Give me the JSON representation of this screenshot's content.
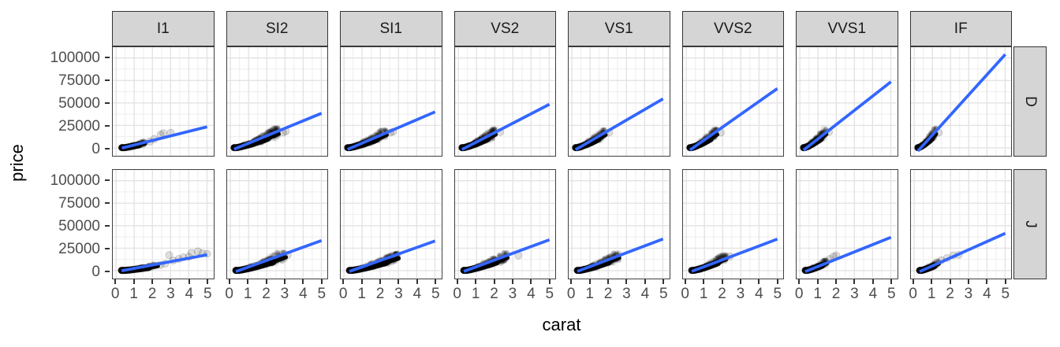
{
  "chart_data": {
    "type": "scatter",
    "title": "",
    "xlabel": "carat",
    "ylabel": "price",
    "facet_col_var": "clarity",
    "facet_col_levels": [
      "I1",
      "SI2",
      "SI1",
      "VS2",
      "VS1",
      "VVS2",
      "VVS1",
      "IF"
    ],
    "facet_row_var": "color",
    "facet_row_levels": [
      "D",
      "J"
    ],
    "x_domain": [
      -0.18,
      5.35
    ],
    "y_domain": [
      -8800,
      112000
    ],
    "x_major_ticks": [
      0,
      1,
      2,
      3,
      4,
      5
    ],
    "x_minor_gridlines": [
      0.5,
      1.5,
      2.5,
      3.5,
      4.5
    ],
    "y_major_ticks": [
      0,
      25000,
      50000,
      75000,
      100000
    ],
    "y_minor_gridlines": [
      12500,
      37500,
      62500,
      87500
    ],
    "grid": true,
    "legend_position": "none",
    "colors": {
      "point": "#000000",
      "point_alpha": 0.13,
      "smooth_line": "#3366FF",
      "strip_fill": "#d5d5d5",
      "strip_border": "#333333",
      "panel_border": "#404040",
      "grid_major": "#e3e3e3",
      "grid_minor": "#f0f0f0",
      "tick_text": "#4d4d4d"
    },
    "smooth_note": "linear fit per facet; segment endpoints [carat0, price0, carat1, price1] estimated from pixels",
    "cluster_note": "dense point cloud per facet approximated by carat range, top price at cluster end, and point count",
    "panels": [
      {
        "row": "D",
        "col": "I1",
        "smooth": [
          0.32,
          -300,
          5.01,
          23500
        ],
        "cluster": {
          "carat_min": 0.32,
          "carat_max": 1.6,
          "price_top": 6500,
          "n": 210
        },
        "outliers": [
          [
            1.85,
            7000
          ],
          [
            2.1,
            9800
          ],
          [
            2.45,
            14800
          ],
          [
            2.6,
            16400
          ],
          [
            3.0,
            16800
          ]
        ]
      },
      {
        "row": "D",
        "col": "SI2",
        "smooth": [
          0.2,
          -1500,
          5.01,
          38500
        ],
        "cluster": {
          "carat_min": 0.2,
          "carat_max": 2.65,
          "price_top": 19500,
          "n": 430
        },
        "outliers": [
          [
            2.9,
            17000
          ],
          [
            3.05,
            18500
          ]
        ]
      },
      {
        "row": "D",
        "col": "SI1",
        "smooth": [
          0.2,
          -1600,
          5.01,
          40000
        ],
        "cluster": {
          "carat_min": 0.2,
          "carat_max": 2.35,
          "price_top": 18000,
          "n": 400
        },
        "outliers": [
          [
            2.55,
            17000
          ],
          [
            2.7,
            18000
          ]
        ]
      },
      {
        "row": "D",
        "col": "VS2",
        "smooth": [
          0.2,
          -1800,
          5.01,
          48500
        ],
        "cluster": {
          "carat_min": 0.2,
          "carat_max": 2.05,
          "price_top": 18500,
          "n": 380
        },
        "outliers": [
          [
            2.3,
            17500
          ]
        ]
      },
      {
        "row": "D",
        "col": "VS1",
        "smooth": [
          0.2,
          -2000,
          5.01,
          54500
        ],
        "cluster": {
          "carat_min": 0.2,
          "carat_max": 1.85,
          "price_top": 18000,
          "n": 340
        },
        "outliers": [
          [
            2.05,
            17000
          ]
        ]
      },
      {
        "row": "D",
        "col": "VVS2",
        "smooth": [
          0.2,
          -2400,
          5.01,
          66000
        ],
        "cluster": {
          "carat_min": 0.2,
          "carat_max": 1.7,
          "price_top": 18500,
          "n": 300
        },
        "outliers": [
          [
            1.9,
            17000
          ]
        ]
      },
      {
        "row": "D",
        "col": "VVS1",
        "smooth": [
          0.2,
          -2600,
          5.01,
          73500
        ],
        "cluster": {
          "carat_min": 0.2,
          "carat_max": 1.45,
          "price_top": 19000,
          "n": 260
        },
        "outliers": [
          [
            1.6,
            17500
          ]
        ]
      },
      {
        "row": "D",
        "col": "IF",
        "smooth": [
          0.2,
          -3500,
          5.01,
          104000
        ],
        "cluster": {
          "carat_min": 0.2,
          "carat_max": 1.2,
          "price_top": 19500,
          "n": 210
        },
        "outliers": [
          [
            1.35,
            17000
          ]
        ]
      },
      {
        "row": "J",
        "col": "I1",
        "smooth": [
          0.3,
          -200,
          5.01,
          17600
        ],
        "cluster": {
          "carat_min": 0.3,
          "carat_max": 2.3,
          "price_top": 6500,
          "n": 260
        },
        "outliers": [
          [
            2.45,
            6300
          ],
          [
            2.7,
            7800
          ],
          [
            2.92,
            17300
          ],
          [
            3.15,
            11200
          ],
          [
            3.45,
            13000
          ],
          [
            3.7,
            14800
          ],
          [
            4.0,
            15500
          ],
          [
            4.15,
            19800
          ],
          [
            4.5,
            21500
          ],
          [
            4.75,
            19200
          ],
          [
            5.01,
            18700
          ]
        ]
      },
      {
        "row": "J",
        "col": "SI2",
        "smooth": [
          0.3,
          -1000,
          5.01,
          33500
        ],
        "cluster": {
          "carat_min": 0.3,
          "carat_max": 3.05,
          "price_top": 18500,
          "n": 430
        },
        "outliers": [
          [
            3.15,
            17500
          ]
        ]
      },
      {
        "row": "J",
        "col": "SI1",
        "smooth": [
          0.3,
          -900,
          5.01,
          33000
        ],
        "cluster": {
          "carat_min": 0.3,
          "carat_max": 3.0,
          "price_top": 17000,
          "n": 400
        },
        "outliers": []
      },
      {
        "row": "J",
        "col": "VS2",
        "smooth": [
          0.3,
          -900,
          5.01,
          34300
        ],
        "cluster": {
          "carat_min": 0.3,
          "carat_max": 2.7,
          "price_top": 17800,
          "n": 360
        },
        "outliers": [
          [
            3.3,
            16800
          ]
        ]
      },
      {
        "row": "J",
        "col": "VS1",
        "smooth": [
          0.3,
          -900,
          5.01,
          35200
        ],
        "cluster": {
          "carat_min": 0.3,
          "carat_max": 2.6,
          "price_top": 17800,
          "n": 320
        },
        "outliers": []
      },
      {
        "row": "J",
        "col": "VVS2",
        "smooth": [
          0.3,
          -900,
          5.01,
          35000
        ],
        "cluster": {
          "carat_min": 0.3,
          "carat_max": 2.2,
          "price_top": 16000,
          "n": 280
        },
        "outliers": [
          [
            2.4,
            15800
          ]
        ]
      },
      {
        "row": "J",
        "col": "VVS1",
        "smooth": [
          0.3,
          -1000,
          5.01,
          37000
        ],
        "cluster": {
          "carat_min": 0.3,
          "carat_max": 1.5,
          "price_top": 10500,
          "n": 180
        },
        "outliers": [
          [
            1.65,
            13000
          ],
          [
            1.85,
            15800
          ],
          [
            2.0,
            16800
          ]
        ]
      },
      {
        "row": "J",
        "col": "IF",
        "smooth": [
          0.3,
          -1100,
          5.01,
          41500
        ],
        "cluster": {
          "carat_min": 0.3,
          "carat_max": 1.35,
          "price_top": 9500,
          "n": 150
        },
        "outliers": [
          [
            1.5,
            11500
          ],
          [
            1.8,
            14000
          ],
          [
            2.15,
            17000
          ],
          [
            2.45,
            17500
          ]
        ]
      }
    ]
  }
}
